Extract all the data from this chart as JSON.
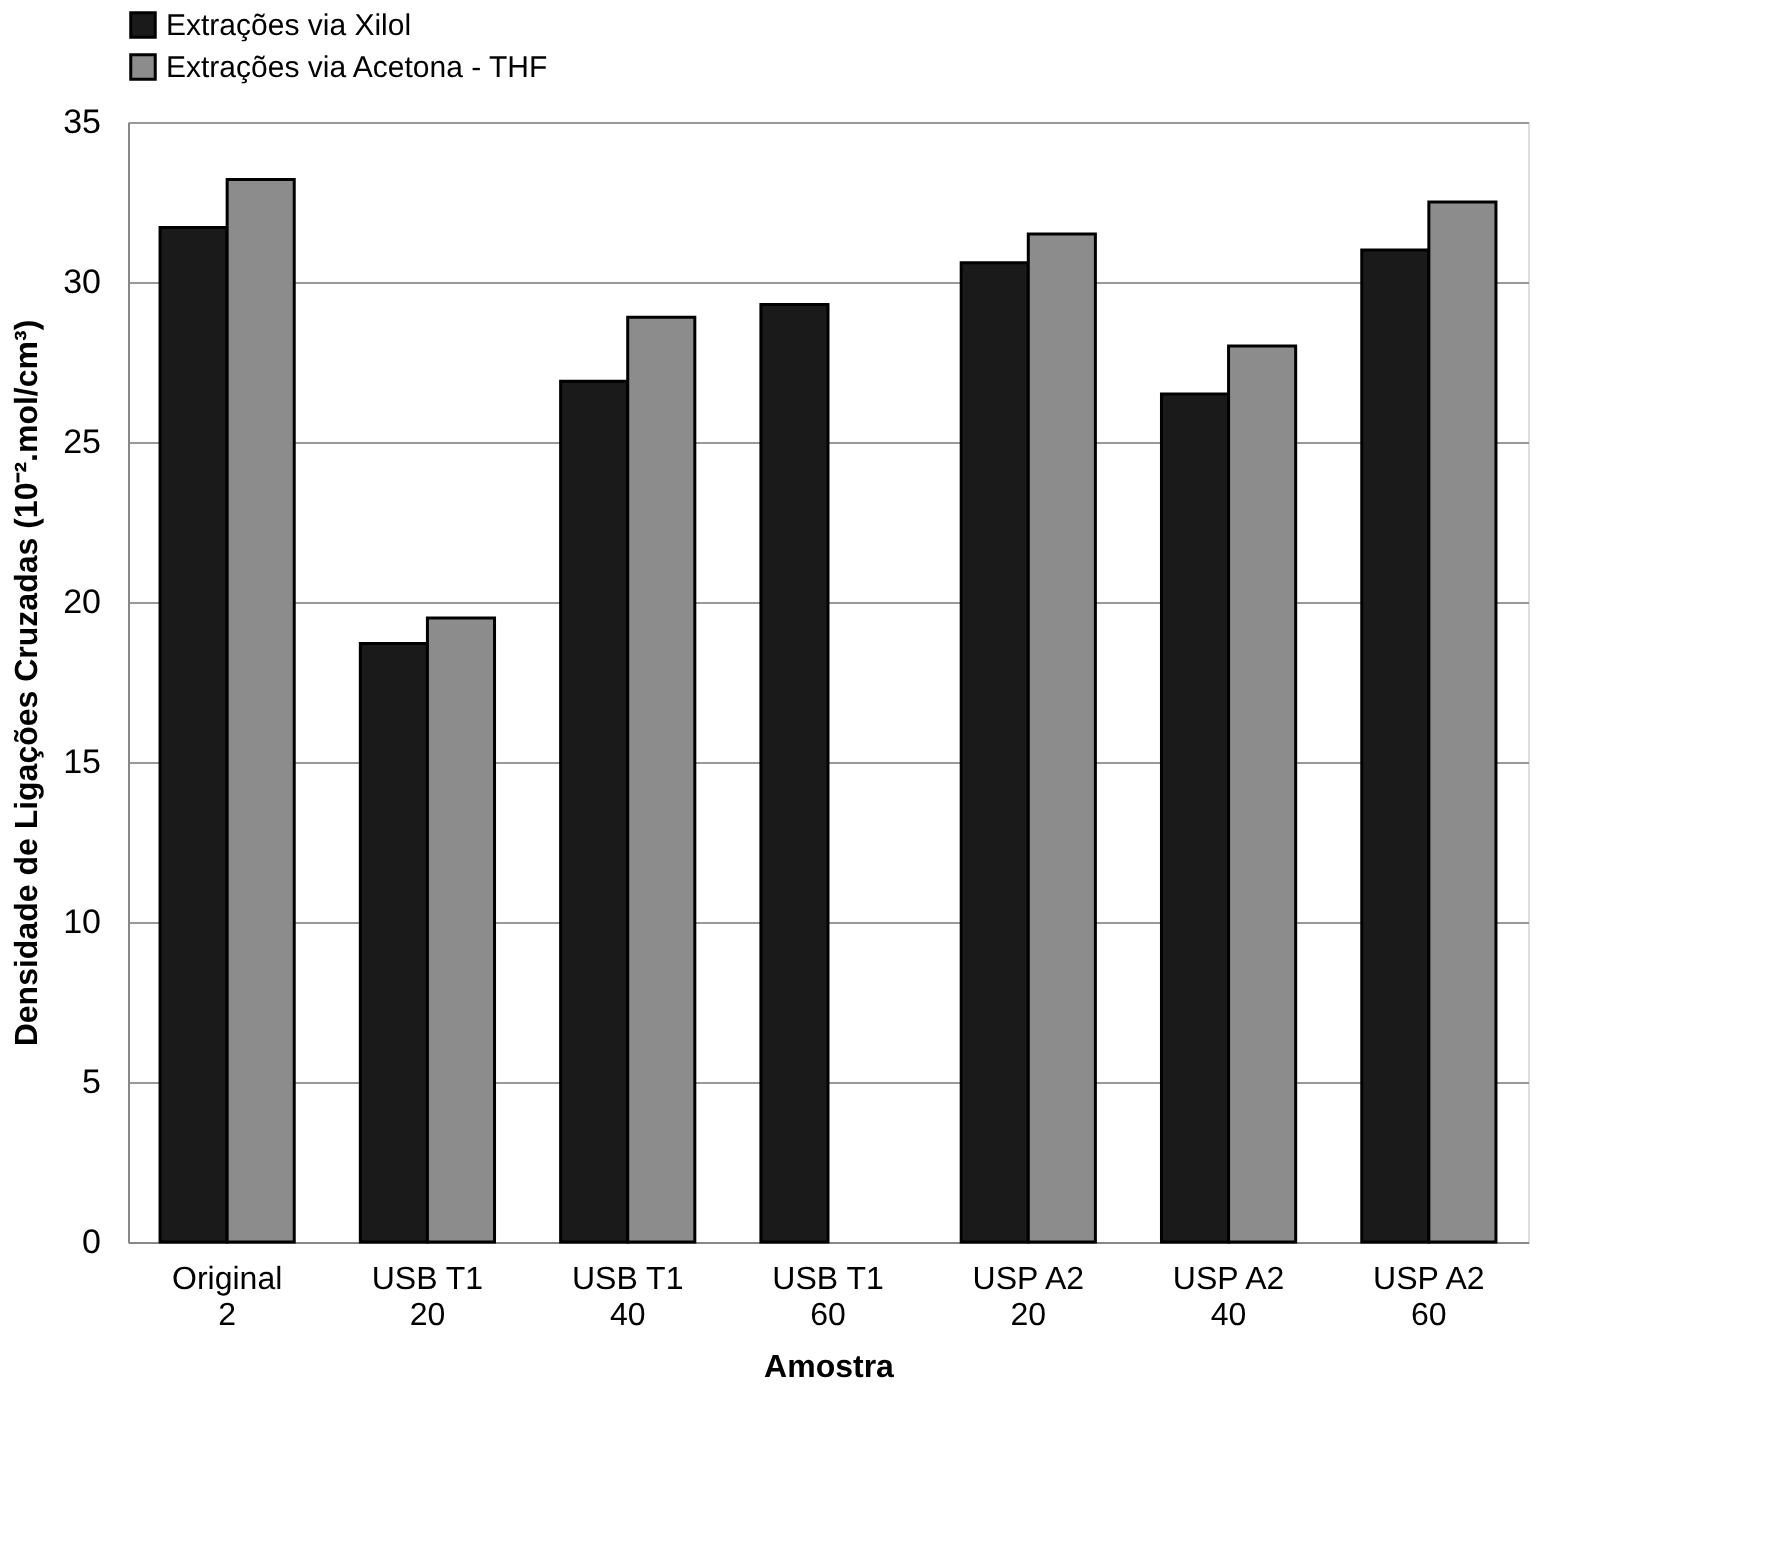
{
  "chart_data": {
    "type": "bar",
    "xlabel": "Amostra",
    "ylabel": "Densidade de Ligações Cruzadas (10⁻².mol/cm³)",
    "categories": [
      "Original\n2",
      "USB T1\n20",
      "USB T1\n40",
      "USB T1\n60",
      "USP A2\n20",
      "USP A2\n40",
      "USP A2\n60"
    ],
    "series": [
      {
        "name": "Extrações via Xilol",
        "color": "#1a1a1a",
        "values": [
          31.7,
          18.7,
          26.9,
          29.3,
          30.6,
          26.5,
          31.0
        ]
      },
      {
        "name": "Extrações via Acetona - THF",
        "color": "#8c8c8c",
        "values": [
          33.2,
          19.5,
          28.9,
          null,
          31.5,
          28.0,
          32.5
        ]
      }
    ],
    "ylim": [
      0,
      35
    ],
    "yticks": [
      0,
      5,
      10,
      15,
      20,
      25,
      30,
      35
    ],
    "grid": "y",
    "legend": "top"
  }
}
